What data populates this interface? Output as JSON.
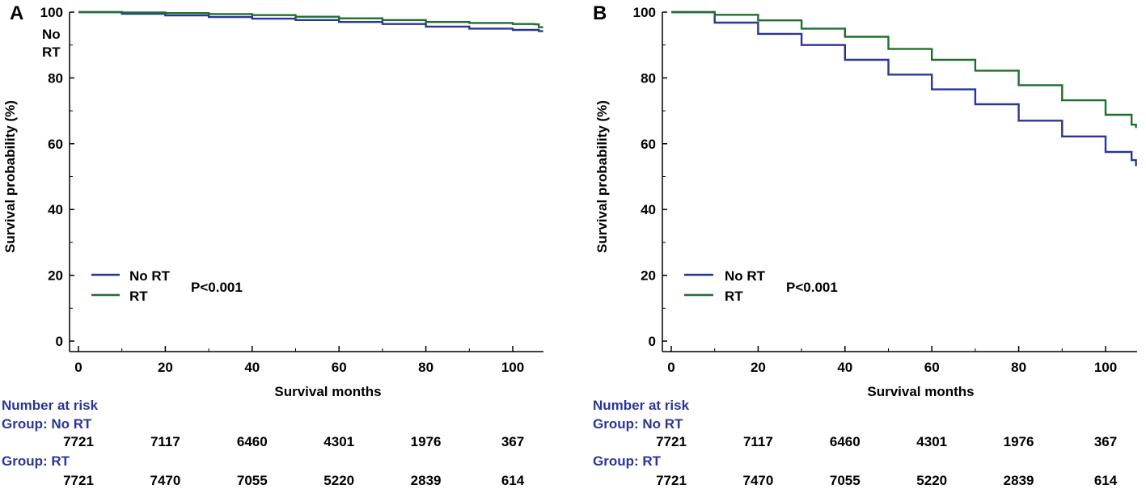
{
  "chart_data": [
    {
      "panel_label": "A",
      "type": "line",
      "chart_kind": "kaplan-meier",
      "xlabel": "Survival months",
      "ylabel": "Survival probability (%)",
      "xlim": [
        -2,
        108
      ],
      "ylim": [
        -2,
        100
      ],
      "xticks": [
        0,
        20,
        40,
        60,
        80,
        100
      ],
      "yticks": [
        0,
        20,
        40,
        60,
        80,
        100
      ],
      "stray_label": "No RT",
      "legend": {
        "entries": [
          "No RT",
          "RT"
        ],
        "placement": "lower-left"
      },
      "annotation": "P<0.001",
      "series": [
        {
          "name": "No RT",
          "color": "#2a3694",
          "x": [
            0,
            10,
            20,
            30,
            40,
            50,
            60,
            70,
            80,
            90,
            100,
            106,
            107
          ],
          "y": [
            100,
            99.5,
            99.0,
            98.5,
            98.0,
            97.6,
            97.0,
            96.4,
            95.6,
            95.0,
            94.6,
            94.2,
            94.2
          ]
        },
        {
          "name": "RT",
          "color": "#1e6e2e",
          "x": [
            0,
            10,
            20,
            30,
            40,
            50,
            60,
            70,
            80,
            90,
            100,
            105,
            106,
            107
          ],
          "y": [
            100,
            99.9,
            99.7,
            99.4,
            99.1,
            98.6,
            98.1,
            97.6,
            97.0,
            96.7,
            96.4,
            96.3,
            95.4,
            95.4
          ]
        }
      ],
      "risk_table": {
        "title": "Number at risk",
        "groups": [
          {
            "label": "Group: No RT",
            "values": [
              "7721",
              "7117",
              "6460",
              "4301",
              "1976",
              "367"
            ]
          },
          {
            "label": "Group: RT",
            "values": [
              "7721",
              "7470",
              "7055",
              "5220",
              "2839",
              "614"
            ]
          }
        ]
      }
    },
    {
      "panel_label": "B",
      "type": "line",
      "chart_kind": "kaplan-meier",
      "xlabel": "Survival months",
      "ylabel": "Survival probability (%)",
      "xlim": [
        -2,
        108
      ],
      "ylim": [
        -2,
        100
      ],
      "xticks": [
        0,
        20,
        40,
        60,
        80,
        100
      ],
      "yticks": [
        0,
        20,
        40,
        60,
        80,
        100
      ],
      "legend": {
        "entries": [
          "No RT",
          "RT"
        ],
        "placement": "lower-left"
      },
      "annotation": "P<0.001",
      "series": [
        {
          "name": "No RT",
          "color": "#2a3694",
          "x": [
            0,
            10,
            20,
            30,
            40,
            50,
            60,
            70,
            80,
            90,
            100,
            106,
            107
          ],
          "y": [
            100,
            96.8,
            93.4,
            90.0,
            85.5,
            81.0,
            76.5,
            72.0,
            67.0,
            62.2,
            57.5,
            55.0,
            53.2
          ]
        },
        {
          "name": "RT",
          "color": "#1e6e2e",
          "x": [
            0,
            10,
            20,
            30,
            40,
            50,
            60,
            70,
            80,
            90,
            100,
            106,
            107
          ],
          "y": [
            100,
            99.2,
            97.5,
            95.0,
            92.5,
            88.8,
            85.5,
            82.2,
            77.8,
            73.2,
            68.8,
            65.8,
            64.8
          ]
        }
      ],
      "risk_table": {
        "title": "Number at risk",
        "groups": [
          {
            "label": "Group: No RT",
            "values": [
              "7721",
              "7117",
              "6460",
              "4301",
              "1976",
              "367"
            ]
          },
          {
            "label": "Group: RT",
            "values": [
              "7721",
              "7470",
              "7055",
              "5220",
              "2839",
              "614"
            ]
          }
        ]
      }
    }
  ],
  "colors": {
    "axis": "#000000",
    "table_text": "#2a3694",
    "no_rt": "#2a3694",
    "rt": "#1e6e2e"
  }
}
